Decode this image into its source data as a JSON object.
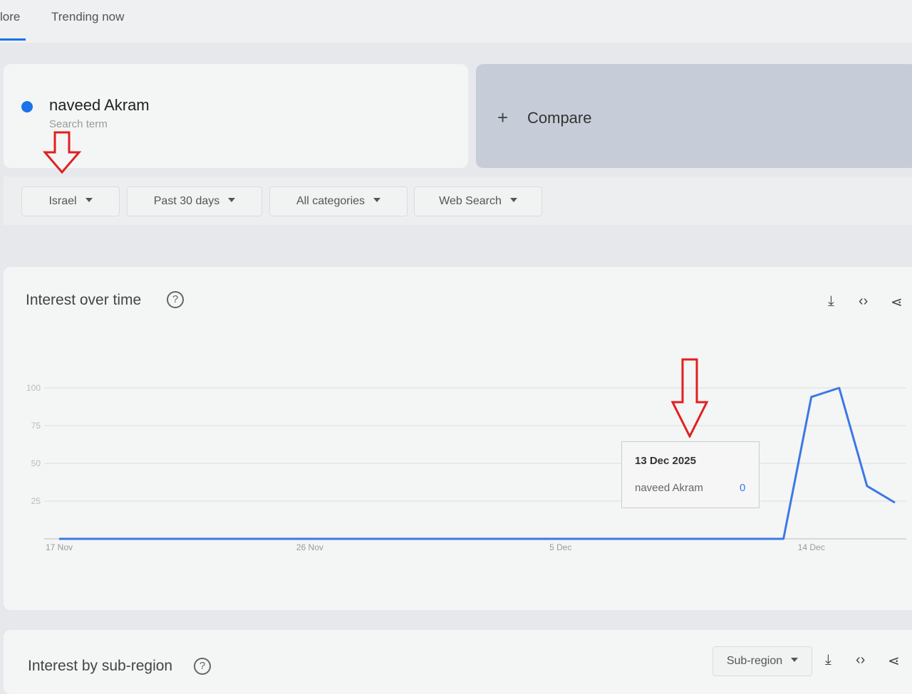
{
  "tabs": [
    "lore",
    "Trending now"
  ],
  "search": {
    "term": "naveed Akram",
    "sublabel": "Search term",
    "compare": "Compare"
  },
  "filters": [
    "Israel",
    "Past 30 days",
    "All categories",
    "Web Search"
  ],
  "chart_data": {
    "type": "line",
    "title": "Interest over time",
    "categories": [
      "17 Nov",
      null,
      null,
      null,
      null,
      null,
      null,
      null,
      null,
      "26 Nov",
      null,
      null,
      null,
      null,
      null,
      null,
      null,
      null,
      "5 Dec",
      null,
      null,
      null,
      null,
      null,
      null,
      null,
      null,
      "14 Dec",
      null,
      null,
      null
    ],
    "series": [
      {
        "name": "naveed Akram",
        "color": "#3b78e7",
        "values": [
          0,
          0,
          0,
          0,
          0,
          0,
          0,
          0,
          0,
          0,
          0,
          0,
          0,
          0,
          0,
          0,
          0,
          0,
          0,
          0,
          0,
          0,
          0,
          0,
          0,
          0,
          0,
          94,
          100,
          35,
          24
        ]
      }
    ],
    "ylim": [
      0,
      100
    ],
    "yticks": [
      25,
      50,
      75,
      100
    ],
    "grid": true,
    "tooltip": {
      "title": "13 Dec 2025",
      "series": "naveed Akram",
      "value": 0
    }
  },
  "subregion": {
    "title": "Interest by sub-region",
    "dropdown": "Sub-region"
  }
}
